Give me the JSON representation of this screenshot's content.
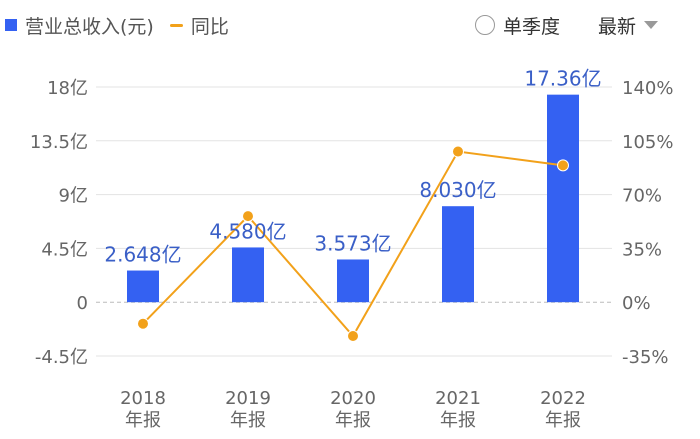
{
  "legend": {
    "bar_label": "营业总收入(元)",
    "line_label": "同比"
  },
  "controls": {
    "single_quarter_label": "单季度",
    "latest_label": "最新"
  },
  "colors": {
    "bar": "#3461f2",
    "line": "#f2a11a",
    "bar_label": "#3a5fc7",
    "grid": "#e3e3e3",
    "zero_line": "#bbbbbb",
    "axis_text": "#666666"
  },
  "chart_data": {
    "type": "bar",
    "categories": [
      "2018\n年报",
      "2019\n年报",
      "2020\n年报",
      "2021\n年报",
      "2022\n年报"
    ],
    "series": [
      {
        "name": "营业总收入(元)",
        "type": "bar",
        "axis": "left",
        "values": [
          2.648,
          4.58,
          3.573,
          8.03,
          17.36
        ],
        "labels": [
          "2.648亿",
          "4.580亿",
          "3.573亿",
          "8.030亿",
          "17.36亿"
        ]
      },
      {
        "name": "同比",
        "type": "line",
        "axis": "right",
        "values": [
          -14,
          56,
          -22,
          98,
          89
        ]
      }
    ],
    "y_left": {
      "ticks": [
        18,
        13.5,
        9,
        4.5,
        0,
        -4.5
      ],
      "tick_labels": [
        "18亿",
        "13.5亿",
        "9亿",
        "4.5亿",
        "0",
        "-4.5亿"
      ],
      "range": [
        -4.5,
        18
      ]
    },
    "y_right": {
      "ticks": [
        140,
        105,
        70,
        35,
        0,
        -35
      ],
      "tick_labels": [
        "140%",
        "105%",
        "70%",
        "35%",
        "0%",
        "-35%"
      ],
      "range": [
        -35,
        140
      ]
    },
    "grid": true,
    "legend_position": "top-left"
  }
}
